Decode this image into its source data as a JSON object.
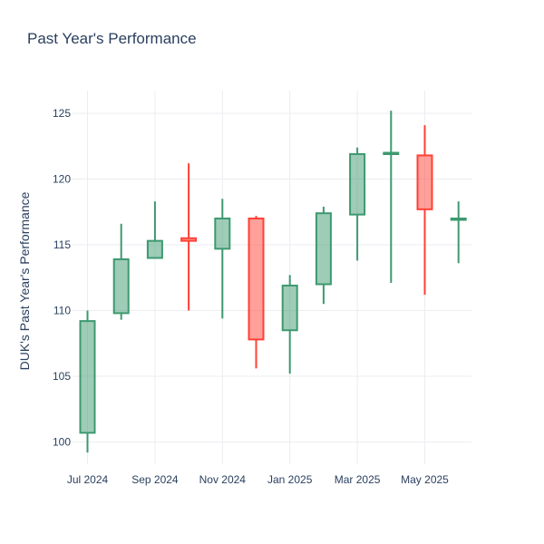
{
  "chart_data": {
    "type": "candlestick",
    "title": "Past Year's Performance",
    "xlabel": "",
    "ylabel": "DUK's Past Year's Performance",
    "ylim": [
      98,
      126.5
    ],
    "y_ticks": [
      100,
      105,
      110,
      115,
      120,
      125
    ],
    "x_tick_labels": [
      "Jul 2024",
      "Sep 2024",
      "Nov 2024",
      "Jan 2025",
      "Mar 2025",
      "May 2025"
    ],
    "grid": true,
    "colors": {
      "increasing": "#3d9970",
      "decreasing": "#ff4136",
      "grid": "#ebedf0"
    },
    "candles": [
      {
        "period": "Jul 2024",
        "open": 100.7,
        "high": 110.0,
        "low": 99.2,
        "close": 109.2
      },
      {
        "period": "Aug 2024",
        "open": 109.8,
        "high": 116.6,
        "low": 109.3,
        "close": 113.9
      },
      {
        "period": "Sep 2024",
        "open": 114.0,
        "high": 118.3,
        "low": 114.0,
        "close": 115.3
      },
      {
        "period": "Oct 2024",
        "open": 115.5,
        "high": 121.2,
        "low": 110.0,
        "close": 115.3
      },
      {
        "period": "Nov 2024",
        "open": 114.7,
        "high": 118.5,
        "low": 109.4,
        "close": 117.0
      },
      {
        "period": "Dec 2024",
        "open": 117.0,
        "high": 117.2,
        "low": 105.6,
        "close": 107.8
      },
      {
        "period": "Jan 2025",
        "open": 108.5,
        "high": 112.7,
        "low": 105.2,
        "close": 111.9
      },
      {
        "period": "Feb 2025",
        "open": 112.0,
        "high": 117.9,
        "low": 110.5,
        "close": 117.4
      },
      {
        "period": "Mar 2025",
        "open": 117.3,
        "high": 122.4,
        "low": 113.8,
        "close": 121.9
      },
      {
        "period": "Apr 2025",
        "open": 122.0,
        "high": 125.2,
        "low": 112.1,
        "close": 122.0
      },
      {
        "period": "May 2025",
        "open": 121.8,
        "high": 124.1,
        "low": 111.2,
        "close": 117.7
      },
      {
        "period": "Jun 2025",
        "open": 117.0,
        "high": 118.3,
        "low": 113.6,
        "close": 117.0
      }
    ]
  }
}
